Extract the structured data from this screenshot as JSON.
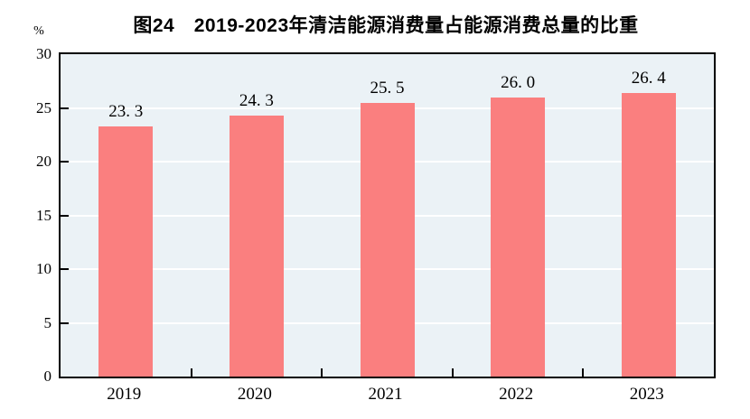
{
  "title": "图24　2019-2023年清洁能源消费量占能源消费总量的比重",
  "unit_label": "%",
  "colors": {
    "bar": "#FA7F7F",
    "plot_background": "#EBF2F6",
    "gridline": "#FFFFFF",
    "axis": "#000000",
    "text": "#000000"
  },
  "chart_data": {
    "type": "bar",
    "title": "图24　2019-2023年清洁能源消费量占能源消费总量的比重",
    "categories": [
      "2019",
      "2020",
      "2021",
      "2022",
      "2023"
    ],
    "values": [
      23.3,
      24.3,
      25.5,
      26.0,
      26.4
    ],
    "value_labels": [
      "23. 3",
      "24. 3",
      "25. 5",
      "26. 0",
      "26. 4"
    ],
    "xlabel": "",
    "ylabel": "%",
    "ylim": [
      0,
      30
    ],
    "yticks": [
      0,
      5,
      10,
      15,
      20,
      25,
      30
    ],
    "grid": true,
    "gridlines_at": [
      5,
      10,
      15,
      20,
      25
    ],
    "legend_position": "none"
  }
}
